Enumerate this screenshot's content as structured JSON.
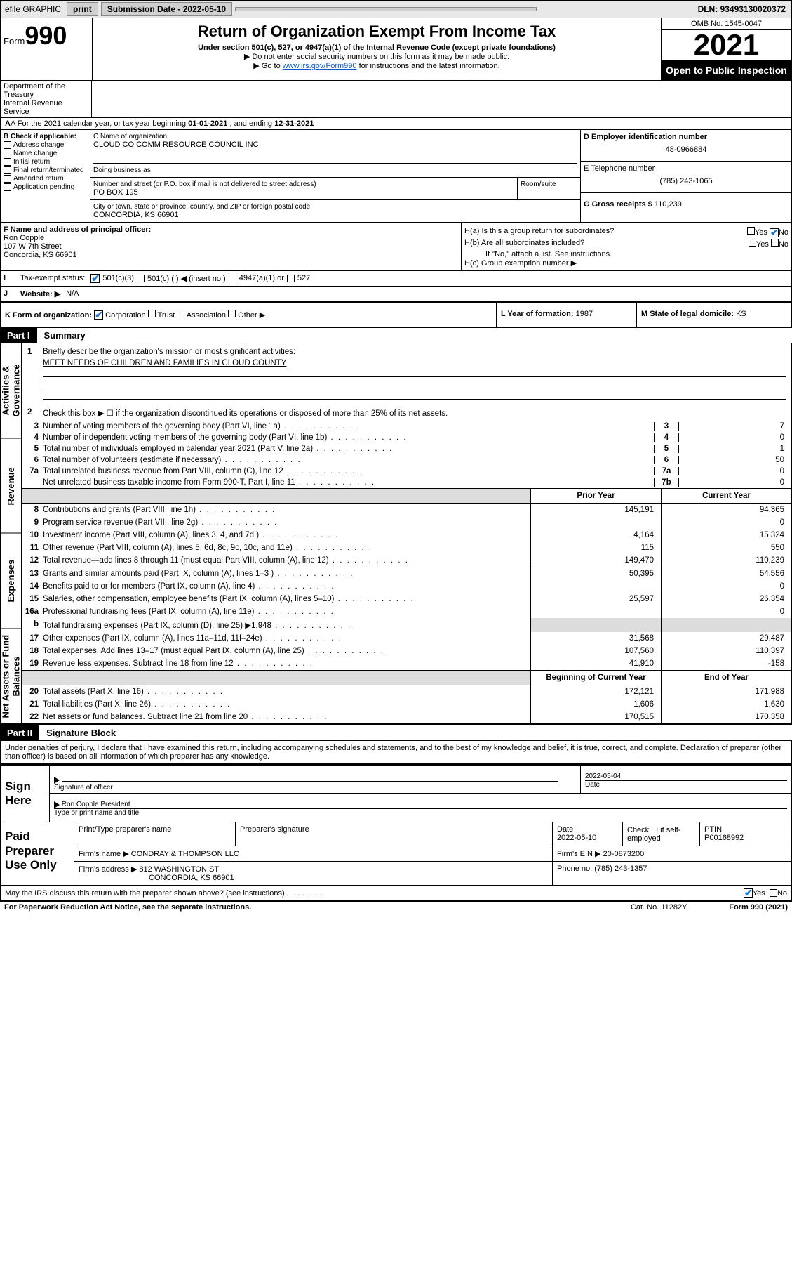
{
  "topbar": {
    "efile": "efile GRAPHIC",
    "print": "print",
    "sub_label": "Submission Date - 2022-05-10",
    "dln": "DLN: 93493130020372"
  },
  "header": {
    "form_word": "Form",
    "form_num": "990",
    "title": "Return of Organization Exempt From Income Tax",
    "subtitle": "Under section 501(c), 527, or 4947(a)(1) of the Internal Revenue Code (except private foundations)",
    "note1": "▶ Do not enter social security numbers on this form as it may be made public.",
    "note2_pre": "▶ Go to ",
    "note2_link": "www.irs.gov/Form990",
    "note2_post": " for instructions and the latest information.",
    "omb": "OMB No. 1545-0047",
    "year": "2021",
    "openpub": "Open to Public Inspection",
    "dept": "Department of the Treasury",
    "irs": "Internal Revenue Service"
  },
  "rowA": {
    "pre": "A For the 2021 calendar year, or tax year beginning ",
    "begin": "01-01-2021",
    "mid": " , and ending ",
    "end": "12-31-2021"
  },
  "colB": {
    "hdr": "B Check if applicable:",
    "items": [
      "Address change",
      "Name change",
      "Initial return",
      "Final return/terminated",
      "Amended return",
      "Application pending"
    ]
  },
  "colC": {
    "c1_label": "C Name of organization",
    "c1_val": "CLOUD CO COMM RESOURCE COUNCIL INC",
    "dba_label": "Doing business as",
    "addr_label": "Number and street (or P.O. box if mail is not delivered to street address)",
    "room_label": "Room/suite",
    "addr_val": "PO BOX 195",
    "city_label": "City or town, state or province, country, and ZIP or foreign postal code",
    "city_val": "CONCORDIA, KS  66901"
  },
  "colD": {
    "d1_label": "D Employer identification number",
    "d1_val": "48-0966884",
    "e_label": "E Telephone number",
    "e_val": "(785) 243-1065",
    "g_label": "G Gross receipts $",
    "g_val": "110,239"
  },
  "rowF": {
    "label": "F Name and address of principal officer:",
    "name": "Ron Copple",
    "addr1": "107 W 7th Street",
    "addr2": "Concordia, KS  66901"
  },
  "colH": {
    "ha": "H(a)  Is this a group return for subordinates?",
    "hb": "H(b)  Are all subordinates included?",
    "hb_note": "If \"No,\" attach a list. See instructions.",
    "hc": "H(c)  Group exemption number ▶",
    "yes": "Yes",
    "no": "No"
  },
  "rowI": {
    "lbl": "I",
    "label": "Tax-exempt status:",
    "o1": "501(c)(3)",
    "o2": "501(c) (   ) ◀ (insert no.)",
    "o3": "4947(a)(1) or",
    "o4": "527"
  },
  "rowJ": {
    "lbl": "J",
    "label": "Website: ▶",
    "val": "N/A"
  },
  "rowK": {
    "label": "K Form of organization:",
    "o1": "Corporation",
    "o2": "Trust",
    "o3": "Association",
    "o4": "Other ▶"
  },
  "rowL": {
    "label": "L Year of formation:",
    "val": "1987"
  },
  "rowM": {
    "label": "M State of legal domicile:",
    "val": "KS"
  },
  "partI": {
    "num": "Part I",
    "title": "Summary",
    "vtabs": [
      "Activities & Governance",
      "Revenue",
      "Expenses",
      "Net Assets or Fund Balances"
    ],
    "q1_label": "Briefly describe the organization's mission or most significant activities:",
    "q1_val": "MEET NEEDS OF CHILDREN AND FAMILIES IN CLOUD COUNTY",
    "q2": "Check this box ▶ ☐  if the organization discontinued its operations or disposed of more than 25% of its net assets.",
    "lines_gov": [
      {
        "n": "3",
        "t": "Number of voting members of the governing body (Part VI, line 1a)",
        "box": "3",
        "v": "7"
      },
      {
        "n": "4",
        "t": "Number of independent voting members of the governing body (Part VI, line 1b)",
        "box": "4",
        "v": "0"
      },
      {
        "n": "5",
        "t": "Total number of individuals employed in calendar year 2021 (Part V, line 2a)",
        "box": "5",
        "v": "1"
      },
      {
        "n": "6",
        "t": "Total number of volunteers (estimate if necessary)",
        "box": "6",
        "v": "50"
      },
      {
        "n": "7a",
        "t": "Total unrelated business revenue from Part VIII, column (C), line 12",
        "box": "7a",
        "v": "0"
      },
      {
        "n": "",
        "t": "Net unrelated business taxable income from Form 990-T, Part I, line 11",
        "box": "7b",
        "v": "0"
      }
    ],
    "yearhdr": {
      "prior": "Prior Year",
      "current": "Current Year"
    },
    "rev": [
      {
        "n": "8",
        "t": "Contributions and grants (Part VIII, line 1h)",
        "p": "145,191",
        "c": "94,365"
      },
      {
        "n": "9",
        "t": "Program service revenue (Part VIII, line 2g)",
        "p": "",
        "c": "0"
      },
      {
        "n": "10",
        "t": "Investment income (Part VIII, column (A), lines 3, 4, and 7d )",
        "p": "4,164",
        "c": "15,324"
      },
      {
        "n": "11",
        "t": "Other revenue (Part VIII, column (A), lines 5, 6d, 8c, 9c, 10c, and 11e)",
        "p": "115",
        "c": "550"
      },
      {
        "n": "12",
        "t": "Total revenue—add lines 8 through 11 (must equal Part VIII, column (A), line 12)",
        "p": "149,470",
        "c": "110,239"
      }
    ],
    "exp": [
      {
        "n": "13",
        "t": "Grants and similar amounts paid (Part IX, column (A), lines 1–3 )",
        "p": "50,395",
        "c": "54,556"
      },
      {
        "n": "14",
        "t": "Benefits paid to or for members (Part IX, column (A), line 4)",
        "p": "",
        "c": "0"
      },
      {
        "n": "15",
        "t": "Salaries, other compensation, employee benefits (Part IX, column (A), lines 5–10)",
        "p": "25,597",
        "c": "26,354"
      },
      {
        "n": "16a",
        "t": "Professional fundraising fees (Part IX, column (A), line 11e)",
        "p": "",
        "c": "0"
      },
      {
        "n": "b",
        "t": "Total fundraising expenses (Part IX, column (D), line 25) ▶1,948",
        "p": "SHADE",
        "c": "SHADE"
      },
      {
        "n": "17",
        "t": "Other expenses (Part IX, column (A), lines 11a–11d, 11f–24e)",
        "p": "31,568",
        "c": "29,487"
      },
      {
        "n": "18",
        "t": "Total expenses. Add lines 13–17 (must equal Part IX, column (A), line 25)",
        "p": "107,560",
        "c": "110,397"
      },
      {
        "n": "19",
        "t": "Revenue less expenses. Subtract line 18 from line 12",
        "p": "41,910",
        "c": "-158"
      }
    ],
    "nethdr": {
      "begin": "Beginning of Current Year",
      "end": "End of Year"
    },
    "net": [
      {
        "n": "20",
        "t": "Total assets (Part X, line 16)",
        "p": "172,121",
        "c": "171,988"
      },
      {
        "n": "21",
        "t": "Total liabilities (Part X, line 26)",
        "p": "1,606",
        "c": "1,630"
      },
      {
        "n": "22",
        "t": "Net assets or fund balances. Subtract line 21 from line 20",
        "p": "170,515",
        "c": "170,358"
      }
    ]
  },
  "partII": {
    "num": "Part II",
    "title": "Signature Block",
    "decl": "Under penalties of perjury, I declare that I have examined this return, including accompanying schedules and statements, and to the best of my knowledge and belief, it is true, correct, and complete. Declaration of preparer (other than officer) is based on all information of which preparer has any knowledge.",
    "sign_here": "Sign Here",
    "sig_label": "Signature of officer",
    "date_label": "Date",
    "date_val": "2022-05-04",
    "name_label": "Type or print name and title",
    "name_val": "Ron Copple  President",
    "paid": "Paid Preparer Use Only",
    "pp_name": "Print/Type preparer's name",
    "pp_sig": "Preparer's signature",
    "pp_date": "Date",
    "pp_date_val": "2022-05-10",
    "pp_check": "Check ☐ if self-employed",
    "pp_ptin": "PTIN",
    "pp_ptin_val": "P00168992",
    "firm_name_l": "Firm's name    ▶",
    "firm_name": "CONDRAY & THOMPSON LLC",
    "firm_ein_l": "Firm's EIN ▶",
    "firm_ein": "20-0873200",
    "firm_addr_l": "Firm's address ▶",
    "firm_addr1": "812 WASHINGTON ST",
    "firm_addr2": "CONCORDIA, KS  66901",
    "firm_phone_l": "Phone no.",
    "firm_phone": "(785) 243-1357",
    "may": "May the IRS discuss this return with the preparer shown above? (see instructions)",
    "yes": "Yes",
    "no": "No"
  },
  "footer": {
    "pra": "For Paperwork Reduction Act Notice, see the separate instructions.",
    "cat": "Cat. No. 11282Y",
    "form": "Form 990 (2021)"
  }
}
